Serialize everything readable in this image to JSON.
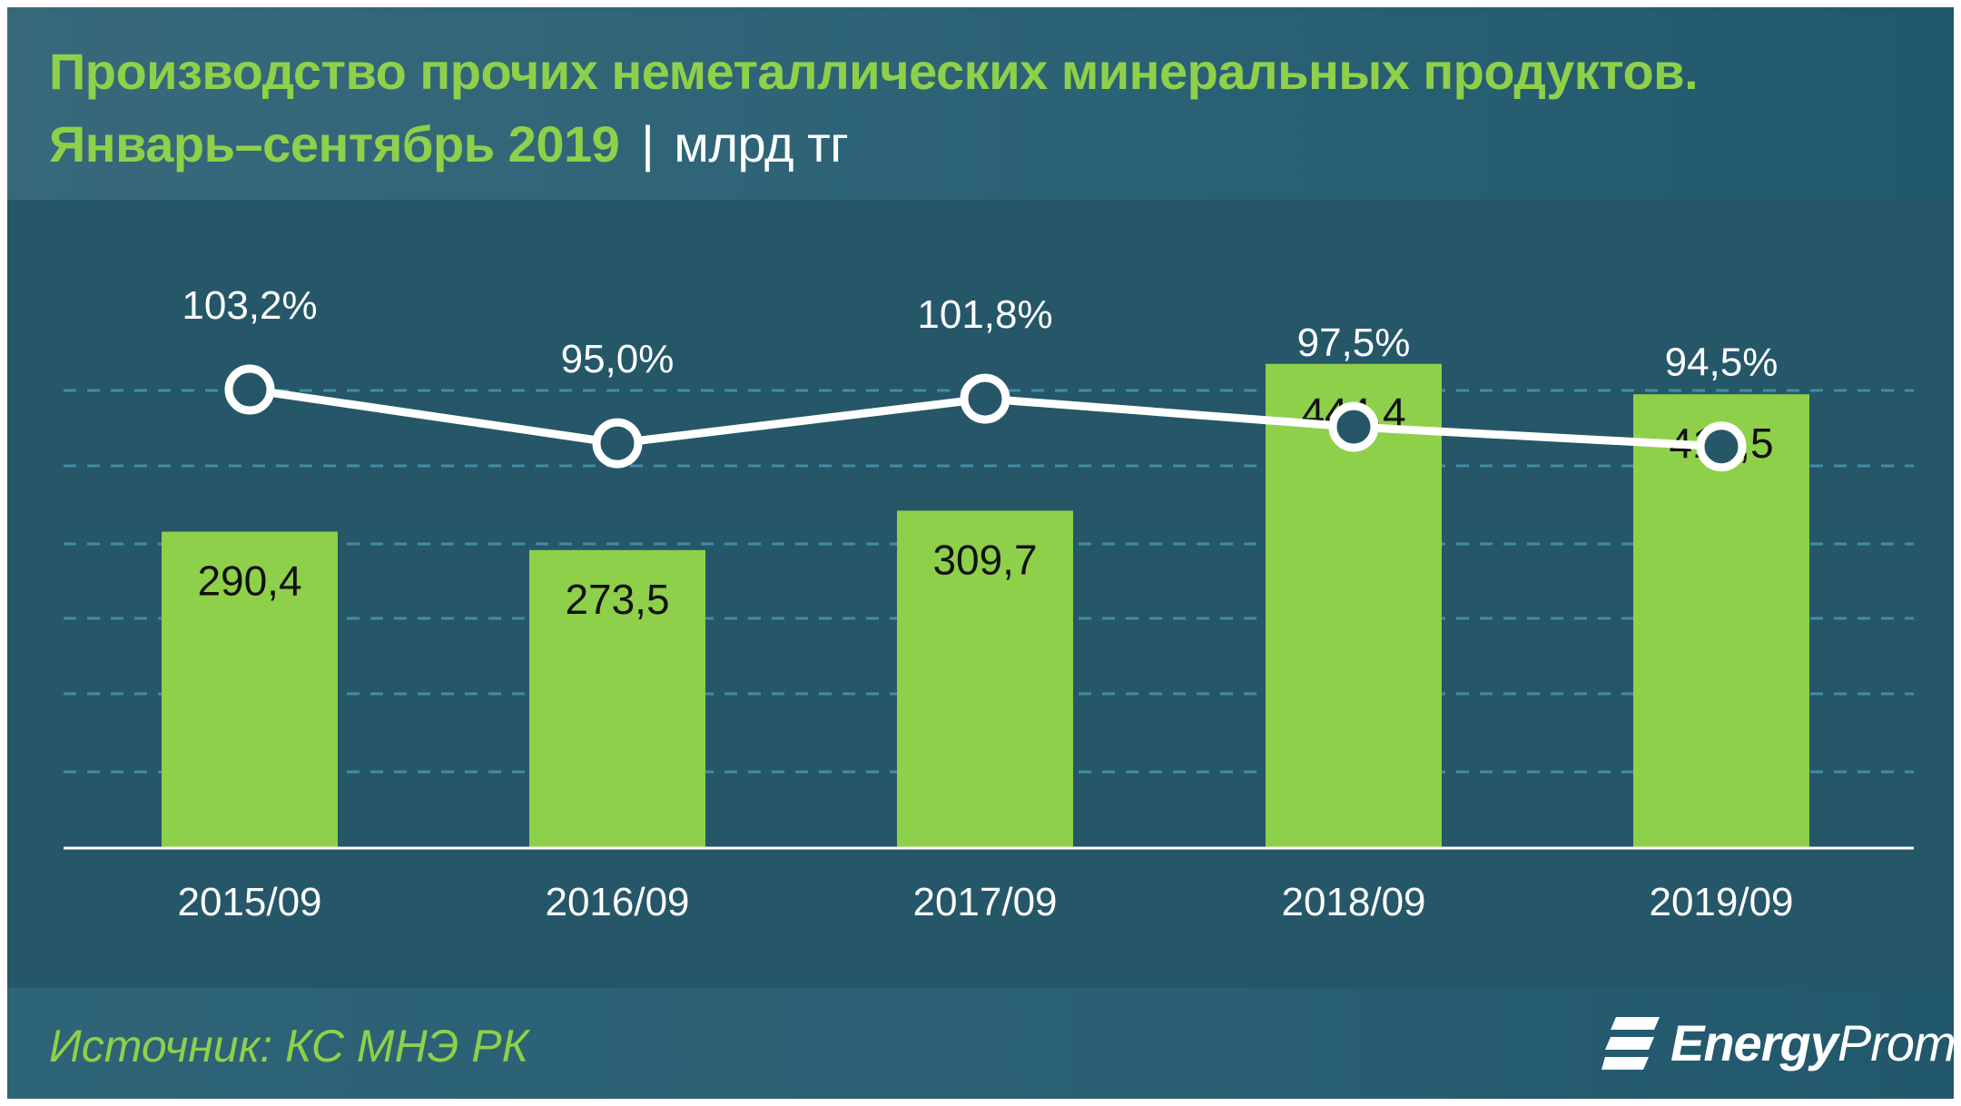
{
  "title": {
    "line1": "Производство прочих неметаллических  минеральных продуктов.",
    "line2": "Январь–сентябрь 2019",
    "separator": "|",
    "unit": "млрд тг"
  },
  "source": "Источник: КС МНЭ РК",
  "logo": {
    "name_bold": "Energy",
    "name_light": "Prom"
  },
  "colors": {
    "background": "#255769",
    "bar": "#8fd04a",
    "line": "#ffffff",
    "title": "#8fd04a"
  },
  "chart_data": {
    "type": "bar",
    "categories": [
      "2015/09",
      "2016/09",
      "2017/09",
      "2018/09",
      "2019/09"
    ],
    "series": [
      {
        "type": "bar",
        "values": [
          290.4,
          273.5,
          309.7,
          444.4,
          416.5
        ],
        "labels": [
          "290,4",
          "273,5",
          "309,7",
          "444,4",
          "416,5"
        ]
      },
      {
        "type": "line",
        "values": [
          103.2,
          95.0,
          101.8,
          97.5,
          94.5
        ],
        "labels": [
          "103,2%",
          "95,0%",
          "101,8%",
          "97,5%",
          "94,5%"
        ]
      }
    ],
    "grid": true,
    "gridline_style": "dashed"
  }
}
